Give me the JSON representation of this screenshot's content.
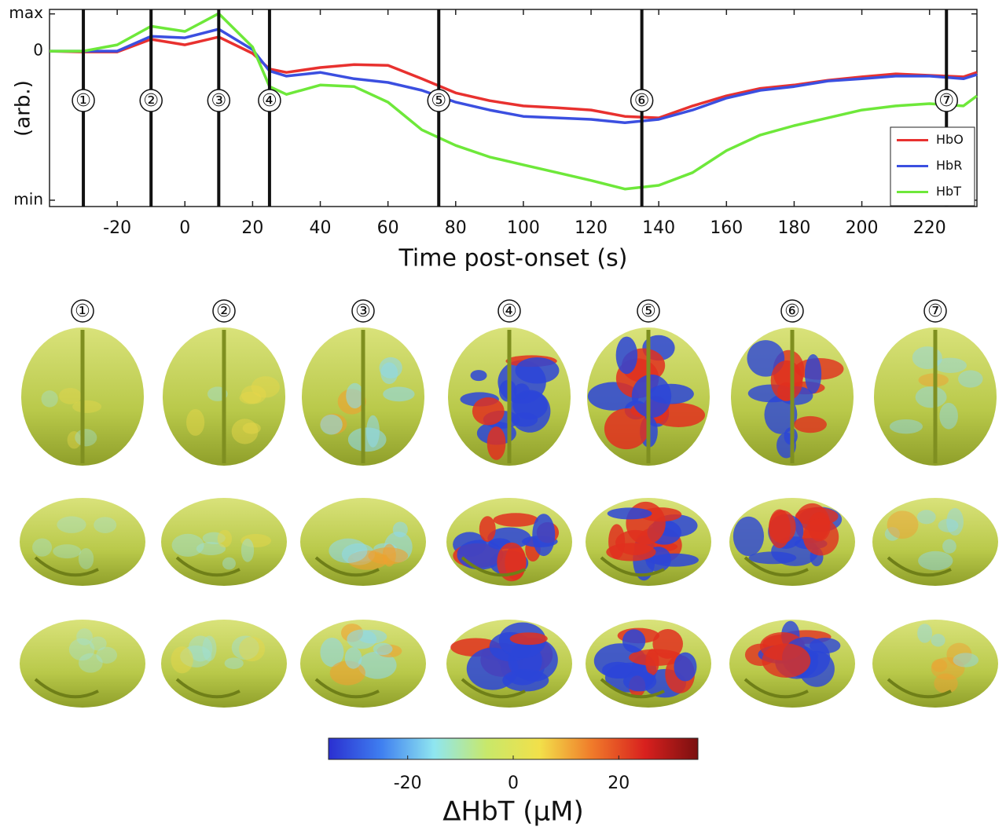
{
  "chart_data": {
    "type": "line",
    "x_label": "Time post-onset (s)",
    "y_label": "(arb.)",
    "x": [
      -40,
      -30,
      -20,
      -10,
      0,
      10,
      20,
      25,
      30,
      40,
      50,
      60,
      70,
      80,
      90,
      100,
      110,
      120,
      130,
      140,
      150,
      160,
      170,
      180,
      190,
      200,
      210,
      220,
      230,
      234
    ],
    "series": [
      {
        "name": "HbO",
        "color": "#e8312f",
        "values": [
          0,
          -0.02,
          -0.02,
          0.32,
          0.17,
          0.38,
          -0.06,
          -0.48,
          -0.57,
          -0.44,
          -0.36,
          -0.38,
          -0.74,
          -1.12,
          -1.33,
          -1.47,
          -1.52,
          -1.58,
          -1.75,
          -1.79,
          -1.47,
          -1.2,
          -1.0,
          -0.91,
          -0.78,
          -0.69,
          -0.61,
          -0.65,
          -0.69,
          -0.57
        ]
      },
      {
        "name": "HbR",
        "color": "#3b4fe0",
        "values": [
          0,
          0,
          0,
          0.4,
          0.36,
          0.59,
          0.04,
          -0.53,
          -0.67,
          -0.57,
          -0.74,
          -0.84,
          -1.05,
          -1.37,
          -1.58,
          -1.75,
          -1.79,
          -1.83,
          -1.92,
          -1.83,
          -1.58,
          -1.26,
          -1.05,
          -0.95,
          -0.8,
          -0.74,
          -0.67,
          -0.67,
          -0.74,
          -0.63
        ]
      },
      {
        "name": "HbT",
        "color": "#6ee83a",
        "values": [
          0,
          0,
          0.17,
          0.67,
          0.53,
          1.01,
          0.11,
          -0.95,
          -1.16,
          -0.91,
          -0.95,
          -1.37,
          -2.11,
          -2.53,
          -2.84,
          -3.05,
          -3.26,
          -3.47,
          -3.7,
          -3.6,
          -3.26,
          -2.67,
          -2.25,
          -2.0,
          -1.79,
          -1.58,
          -1.47,
          -1.41,
          -1.47,
          -1.2
        ]
      }
    ],
    "xlim": [
      -40,
      234
    ],
    "ylim": [
      -4.17,
      1.12
    ],
    "xticks": [
      -20,
      0,
      20,
      40,
      60,
      80,
      100,
      120,
      140,
      160,
      180,
      200,
      220
    ],
    "yticks": [
      {
        "value": 1,
        "label": "max"
      },
      0,
      {
        "value": -4,
        "label": "min"
      }
    ],
    "markers": [
      {
        "x": -30,
        "label": "①"
      },
      {
        "x": -10,
        "label": "②"
      },
      {
        "x": 10,
        "label": "③"
      },
      {
        "x": 25,
        "label": "④"
      },
      {
        "x": 75,
        "label": "⑤"
      },
      {
        "x": 135,
        "label": "⑥"
      },
      {
        "x": 225,
        "label": "⑦"
      }
    ],
    "legend": "lower right"
  },
  "panels": {
    "labels": [
      "①",
      "②",
      "③",
      "④",
      "⑤",
      "⑥",
      "⑦"
    ]
  },
  "colorbar": {
    "label": "ΔHbT (μM)",
    "lim": [
      -35,
      35
    ],
    "ticks": [
      -20,
      0,
      20
    ],
    "colors": [
      "#2a2fd0",
      "#3f7ff0",
      "#8fe6f0",
      "#c8e86a",
      "#f2e04a",
      "#f07a2a",
      "#d8201e",
      "#7a1010"
    ]
  }
}
